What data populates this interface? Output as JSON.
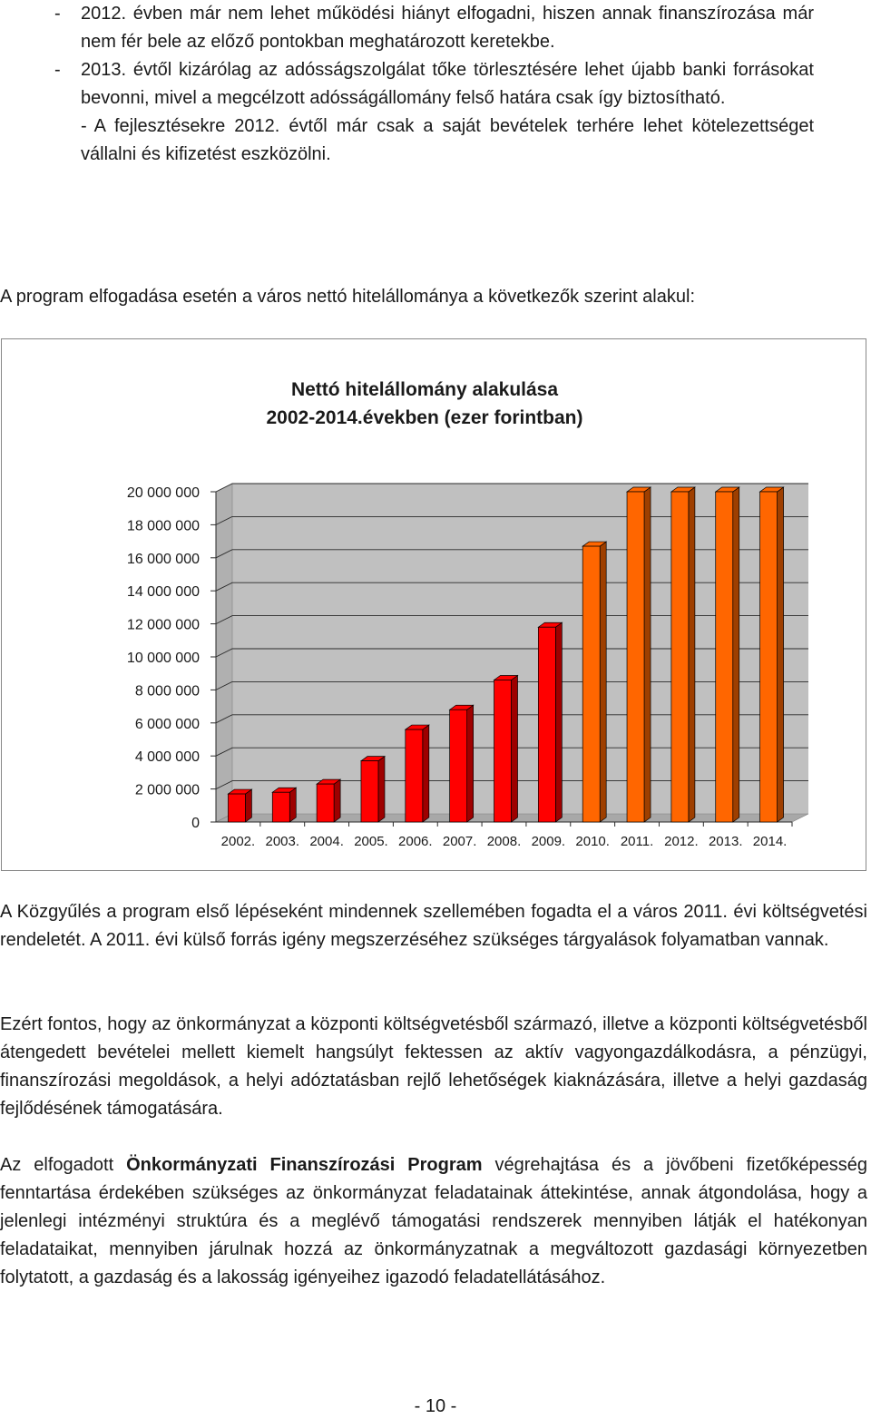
{
  "bullets": [
    {
      "dash": "-",
      "text": "2012. évben már nem lehet működési hiányt elfogadni, hiszen annak finanszírozása már nem fér bele az előző pontokban meghatározott keretekbe."
    },
    {
      "dash": "-",
      "text": "2013. évtől kizárólag az adósságszolgálat tőke törlesztésére lehet újabb banki forrásokat bevonni, mivel a megcélzott adósságállomány felső határa csak így biztosítható."
    },
    {
      "dash": "-",
      "text": "A fejlesztésekre 2012. évtől már csak a saját bevételek terhére lehet kötelezettséget vállalni és kifizetést eszközölni."
    }
  ],
  "intro": "A program elfogadása esetén a város nettó hitelállománya a következők szerint alakul:",
  "chart_data": {
    "type": "bar",
    "title": "Nettó hitelállomány alakulása",
    "subtitle": "2002-2014.években (ezer forintban)",
    "categories": [
      "2002.",
      "2003.",
      "2004.",
      "2005.",
      "2006.",
      "2007.",
      "2008.",
      "2009.",
      "2010.",
      "2011.",
      "2012.",
      "2013.",
      "2014."
    ],
    "values": [
      1700000,
      1800000,
      2300000,
      3700000,
      5600000,
      6800000,
      8600000,
      11800000,
      16700000,
      20000000,
      20000000,
      20000000,
      20000000
    ],
    "ylim": [
      0,
      20000000
    ],
    "yticks": [
      "0",
      "2 000 000",
      "4 000 000",
      "6 000 000",
      "8 000 000",
      "10 000 000",
      "12 000 000",
      "14 000 000",
      "16 000 000",
      "18 000 000",
      "20 000 000"
    ],
    "colors": {
      "actual": "#ff0000",
      "planned": "#ff6600",
      "wall": "#c0c0c0"
    },
    "planned_from_index": 8,
    "grid": true,
    "legend": "none"
  },
  "para1": "A Közgyűlés a program első lépéseként mindennek szellemében fogadta el a város 2011. évi költségvetési rendeletét. A 2011. évi külső forrás igény megszerzéséhez szükséges tárgyalások folyamatban vannak.",
  "para2": "Ezért fontos, hogy az önkormányzat a központi költségvetésből származó, illetve a központi költségvetésből átengedett bevételei mellett kiemelt hangsúlyt fektessen az aktív vagyongazdálkodásra, a pénzügyi, finanszírozási megoldások, a helyi adóztatásban rejlő lehetőségek kiaknázására, illetve a helyi gazdaság fejlődésének támogatására.",
  "para3": {
    "before": "Az elfogadott ",
    "bold": "Önkormányzati Finanszírozási Program",
    "after": " végrehajtása és a jövőbeni fizetőképesség fenntartása érdekében szükséges az önkormányzat feladatainak áttekintése, annak átgondolása, hogy a jelenlegi intézményi struktúra és a meglévő támogatási rendszerek mennyiben látják el hatékonyan feladataikat, mennyiben járulnak hozzá az önkormányzatnak a megváltozott gazdasági környezetben folytatott, a gazdaság és a lakosság igényeihez igazodó feladatellátásához."
  },
  "page_number": "- 10 -"
}
